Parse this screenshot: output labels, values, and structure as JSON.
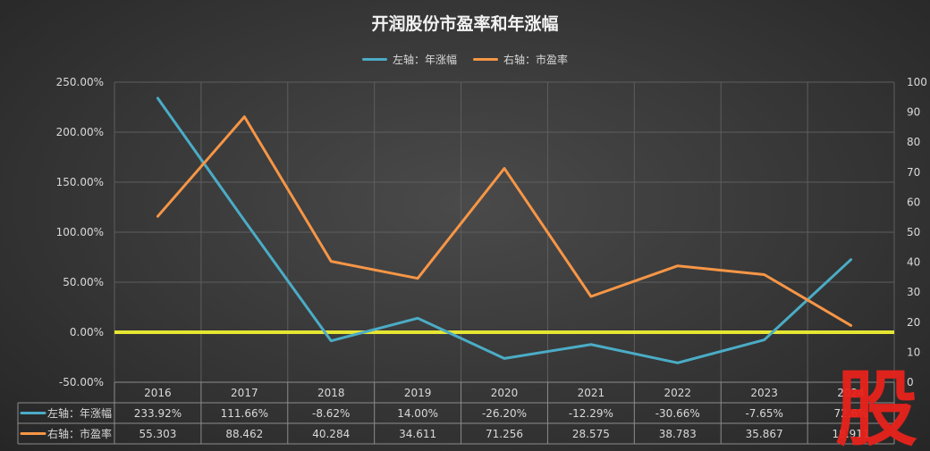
{
  "chart_data": {
    "type": "line",
    "title": "开润股份市盈率和年涨幅",
    "categories": [
      "2016",
      "2017",
      "2018",
      "2019",
      "2020",
      "2021",
      "2022",
      "2023",
      "2024"
    ],
    "series": [
      {
        "name": "左轴：年涨幅",
        "axis": "left",
        "color": "#4bacc6",
        "values": [
          233.92,
          111.66,
          -8.62,
          14.0,
          -26.2,
          -12.29,
          -30.66,
          -7.65,
          72.6
        ],
        "labels": [
          "233.92%",
          "111.66%",
          "-8.62%",
          "14.00%",
          "-26.20%",
          "-12.29%",
          "-30.66%",
          "-7.65%",
          "72.6%"
        ]
      },
      {
        "name": "右轴：市盈率",
        "axis": "right",
        "color": "#f79646",
        "values": [
          55.303,
          88.462,
          40.284,
          34.611,
          71.256,
          28.575,
          38.783,
          35.867,
          18.911
        ],
        "labels": [
          "55.303",
          "88.462",
          "40.284",
          "34.611",
          "71.256",
          "28.575",
          "38.783",
          "35.867",
          "18.911"
        ]
      }
    ],
    "y_left": {
      "min": -50,
      "max": 250,
      "step": 50,
      "ticks": [
        "-50.00%",
        "0.00%",
        "50.00%",
        "100.00%",
        "150.00%",
        "200.00%",
        "250.00%"
      ]
    },
    "y_right": {
      "min": 0,
      "max": 100,
      "step": 10,
      "ticks": [
        "0",
        "10",
        "20",
        "30",
        "40",
        "50",
        "60",
        "70",
        "80",
        "90",
        "100"
      ]
    },
    "zero_line_color": "#e6e632",
    "grid": true,
    "legend_position": "top",
    "data_table": true
  },
  "watermark": {
    "text": "股",
    "color": "#e8221b"
  }
}
